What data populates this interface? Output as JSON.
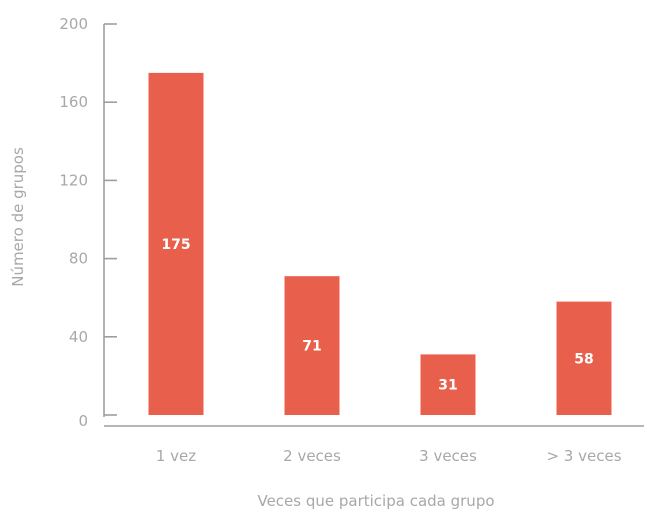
{
  "chart_data": {
    "type": "bar",
    "categories": [
      "1 vez",
      "2 veces",
      "3 veces",
      "> 3 veces"
    ],
    "values": [
      175,
      71,
      31,
      58
    ],
    "xlabel": "Veces que participa cada grupo",
    "ylabel": "Número de grupos",
    "ylim": [
      0,
      200
    ],
    "yticks": [
      0,
      40,
      80,
      120,
      160,
      200
    ],
    "data_labels": [
      "175",
      "71",
      "31",
      "58"
    ],
    "bar_color": "#e8604c",
    "grid": false,
    "legend": "none"
  }
}
